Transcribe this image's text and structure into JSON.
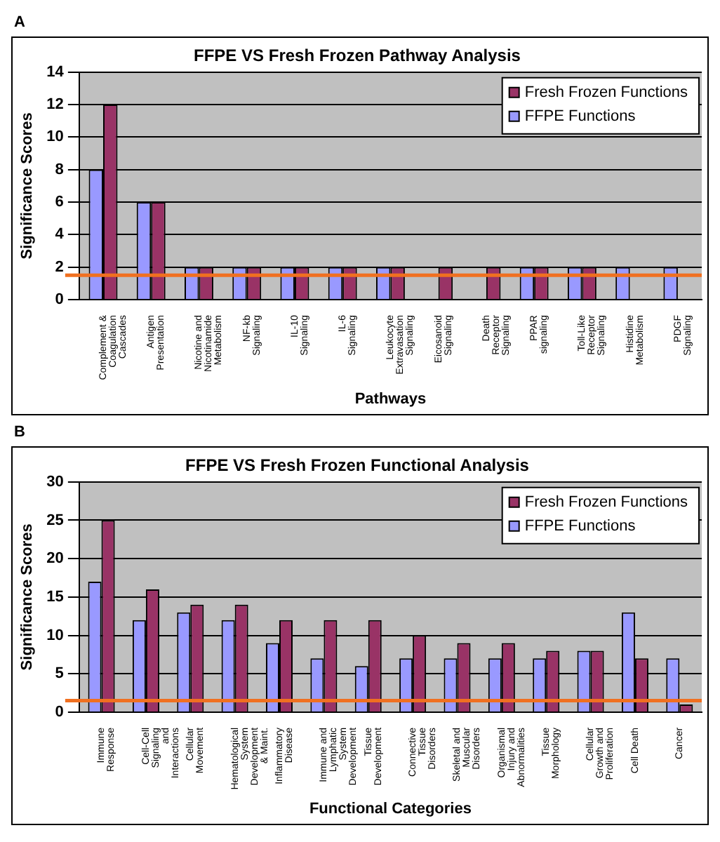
{
  "chart_data": [
    {
      "type": "bar",
      "title": "FFPE VS Fresh Frozen Pathway Analysis",
      "xlabel": "Pathways",
      "ylabel": "Significance Scores",
      "annotations": [
        "A"
      ],
      "categories": [
        "Complement & Coagulation Cascades",
        "Antigen Presentation",
        "Nicotine and Nicotinamide Metabolism",
        "NF-kb Signaling",
        "IL-10 Signaling",
        "IL-6 Signaling",
        "Leukocyte Extravasation Signaling",
        "Eicosanoid Signaling",
        "Death Receptor Signaling",
        "PPAR signaling",
        "Toll-Like Receptor Signaling",
        "Histidine Metabolism",
        "PDGF Signaling"
      ],
      "series": [
        {
          "name": "FFPE Functions",
          "color": "#9999ff",
          "values": [
            8,
            6,
            2,
            2,
            2,
            2,
            2,
            null,
            null,
            2,
            2,
            2,
            2
          ]
        },
        {
          "name": "Fresh Frozen Functions",
          "color": "#993366",
          "values": [
            12,
            6,
            2,
            2,
            2,
            2,
            2,
            2,
            2,
            2,
            2,
            null,
            null
          ]
        }
      ],
      "ylim": [
        0,
        14
      ],
      "yticks": [
        0,
        2,
        4,
        6,
        8,
        10,
        12,
        14
      ],
      "grid": "y",
      "legend": "top right",
      "ref_lines": [
        {
          "axis": "y",
          "value": 1.5,
          "color": "#f07020"
        }
      ]
    },
    {
      "type": "bar",
      "title": "FFPE VS Fresh Frozen Functional Analysis",
      "xlabel": "Functional Categories",
      "ylabel": "Significance Scores",
      "annotations": [
        "B"
      ],
      "categories": [
        "Immune Response",
        "Cell-Cell Signaling and Interactions",
        "Cellular Movement",
        "Hematological System Development & Maint.",
        "Inflammatory Disease",
        "Immune and Lymphatic System Development",
        "Tissue Development",
        "Connective Tissue Disorders",
        "Skeletal and Muscular Disorders",
        "Organismal Injury and Abnormalities",
        "Tissue Morphology",
        "Cellular Growth and Proliferation",
        "Cell Death",
        "Cancer"
      ],
      "series": [
        {
          "name": "FFPE Functions",
          "color": "#9999ff",
          "values": [
            17,
            12,
            13,
            12,
            9,
            7,
            6,
            7,
            7,
            7,
            7,
            8,
            13,
            7
          ]
        },
        {
          "name": "Fresh Frozen Functions",
          "color": "#993366",
          "values": [
            25,
            16,
            14,
            14,
            12,
            12,
            12,
            10,
            9,
            9,
            8,
            8,
            7,
            1
          ]
        }
      ],
      "ylim": [
        0,
        30
      ],
      "yticks": [
        0,
        5,
        10,
        15,
        20,
        25,
        30
      ],
      "grid": "y",
      "legend": "top right",
      "ref_lines": [
        {
          "axis": "y",
          "value": 1.5,
          "color": "#f07020"
        }
      ]
    }
  ]
}
